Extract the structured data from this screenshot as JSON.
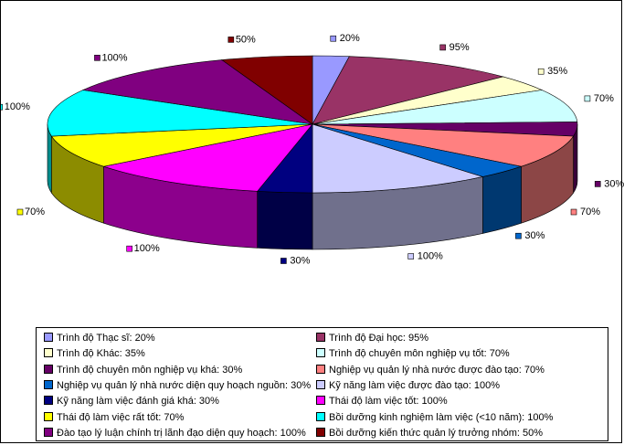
{
  "chart_data": {
    "type": "pie",
    "style": "3d-exploded-pie",
    "series": [
      {
        "name": "Trình độ  Thạc sĩ: 20%",
        "value": 20,
        "label": "20%",
        "color": "#9999FF"
      },
      {
        "name": "Trình độ  Đại học: 95%",
        "value": 95,
        "label": "95%",
        "color": "#993366"
      },
      {
        "name": "Trình độ  Khác: 35%",
        "value": 35,
        "label": "35%",
        "color": "#FFFFCC"
      },
      {
        "name": "Trình độ chuyên môn nghiệp vụ tốt: 70%",
        "value": 70,
        "label": "70%",
        "color": "#CCFFFF"
      },
      {
        "name": "Trình độ chuyên môn nghiệp vụ khá: 30%",
        "value": 30,
        "label": "30%",
        "color": "#660066"
      },
      {
        "name": "Nghiệp vụ quản lý nhà nước được đào tạo: 70%",
        "value": 70,
        "label": "70%",
        "color": "#FF8080"
      },
      {
        "name": "Nghiệp vụ quản lý nhà nước diện quy hoạch nguồn: 30%",
        "value": 30,
        "label": "30%",
        "color": "#0066CC"
      },
      {
        "name": "Kỹ năng làm việc được đào tạo: 100%",
        "value": 100,
        "label": "100%",
        "color": "#CCCCFF"
      },
      {
        "name": "Kỹ năng làm việc đánh giá khá: 30%",
        "value": 30,
        "label": "30%",
        "color": "#000080"
      },
      {
        "name": "Thái độ làm việc tốt: 100%",
        "value": 100,
        "label": "100%",
        "color": "#FF00FF"
      },
      {
        "name": "Thái độ làm việc rất tốt: 70%",
        "value": 70,
        "label": "70%",
        "color": "#FFFF00"
      },
      {
        "name": "Bồi dưỡng kinh nghiệm làm việc (<10 năm): 100%",
        "value": 100,
        "label": "100%",
        "color": "#00FFFF"
      },
      {
        "name": "Đào tạo lý luận chính trị lãnh đạo diện quy hoạch: 100%",
        "value": 100,
        "label": "100%",
        "color": "#800080"
      },
      {
        "name": "Bồi dưỡng kiến thức quản lý trưởng nhóm: 50%",
        "value": 50,
        "label": "50%",
        "color": "#800000"
      }
    ]
  }
}
